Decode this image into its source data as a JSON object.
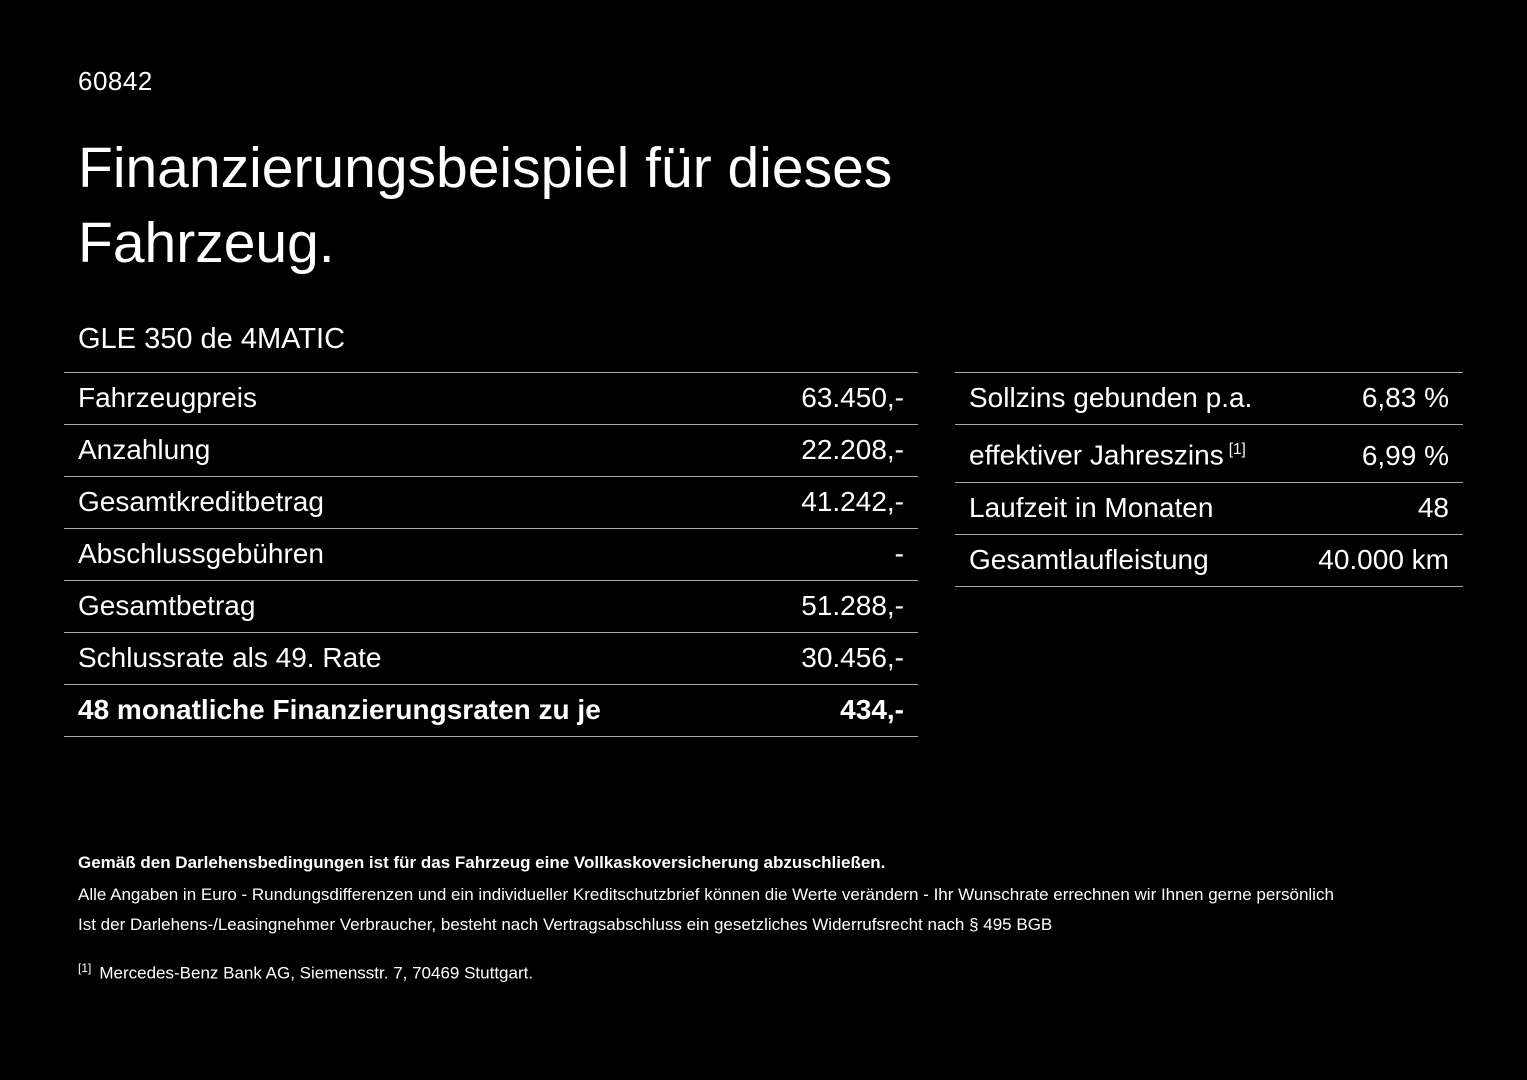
{
  "page": {
    "id": "60842",
    "title": "Finanzierungsbeispiel für dieses Fahrzeug.",
    "model": "GLE 350 de 4MATIC"
  },
  "left_table": {
    "rows": [
      {
        "label": "Fahrzeugpreis",
        "value": "63.450,-"
      },
      {
        "label": "Anzahlung",
        "value": "22.208,-"
      },
      {
        "label": "Gesamtkreditbetrag",
        "value": "41.242,-"
      },
      {
        "label": "Abschlussgebühren",
        "value": "-"
      },
      {
        "label": "Gesamtbetrag",
        "value": "51.288,-"
      },
      {
        "label": "Schlussrate als 49. Rate",
        "value": "30.456,-"
      },
      {
        "label": "48 monatliche Finanzierungsraten zu je",
        "value": "434,-"
      }
    ]
  },
  "right_table": {
    "rows": [
      {
        "label": "Sollzins gebunden p.a.",
        "value": "6,83 %"
      },
      {
        "label": "effektiver Jahreszins",
        "marker": "[1]",
        "value": "6,99 %"
      },
      {
        "label": "Laufzeit in Monaten",
        "value": "48"
      },
      {
        "label": "Gesamtlaufleistung",
        "value": "40.000 km"
      }
    ]
  },
  "footer": {
    "line1": "Gemäß den Darlehensbedingungen ist für das Fahrzeug eine Vollkaskoversicherung abzuschließen.",
    "line2": "Alle Angaben in Euro - Rundungsdifferenzen und ein individueller Kreditschutzbrief können die Werte verändern - Ihr Wunschrate errechnen wir Ihnen gerne persönlich",
    "line3": "Ist der Darlehens-/Leasingnehmer Verbraucher, besteht nach Vertragsabschluss ein gesetzliches Widerrufsrecht nach § 495 BGB",
    "footnote_marker": "[1]",
    "footnote_text": "Mercedes-Benz Bank AG, Siemensstr. 7, 70469 Stuttgart."
  },
  "colors": {
    "background": "#000000",
    "text": "#ffffff",
    "divider": "#a8a8a8"
  }
}
